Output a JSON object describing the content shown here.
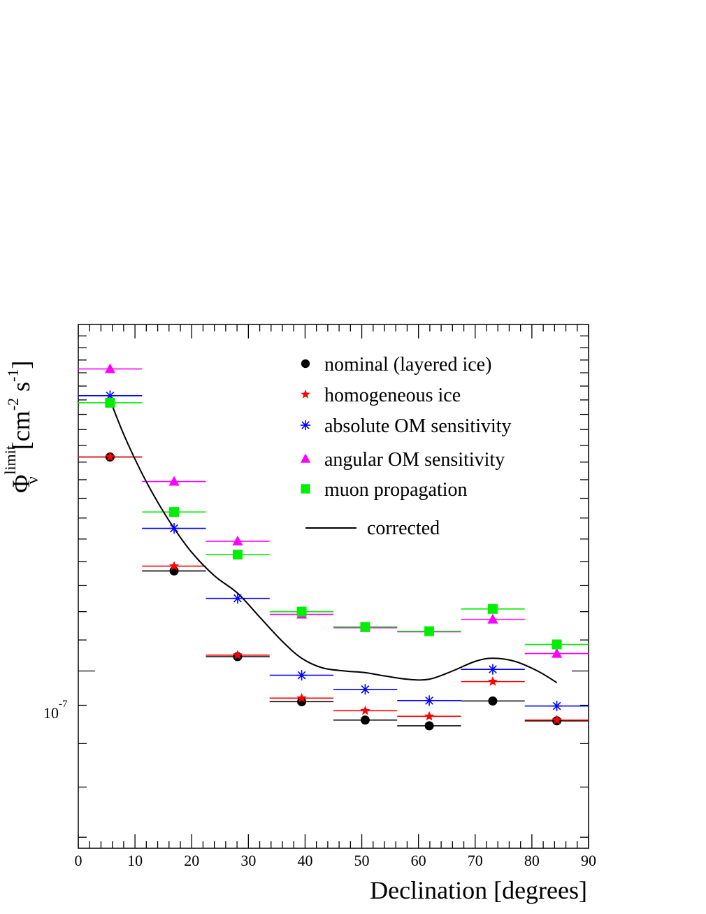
{
  "chart_data": {
    "type": "scatter",
    "xlabel": "Declination [degrees]",
    "ylabel": {
      "symbol": "Φ",
      "superscript": "limit",
      "subscript": "ν",
      "units": "[cm",
      "units_exp1": "-2",
      "units_mid": " s",
      "units_exp2": "-1",
      "units_end": "]"
    },
    "xlim": [
      0,
      90
    ],
    "ylim": [
      5.8e-08,
      2.9e-07
    ],
    "y_scale": "log",
    "x_ticks": [
      "0",
      "10",
      "20",
      "30",
      "40",
      "50",
      "60",
      "70",
      "80",
      "90"
    ],
    "y_tick_label": {
      "base": "10",
      "exp": "-7"
    },
    "bin_edges": [
      0,
      11.25,
      22.5,
      33.75,
      45,
      56.25,
      67.5,
      78.75,
      90
    ],
    "bin_centers": [
      5.6,
      16.9,
      28.1,
      39.4,
      50.6,
      61.9,
      73.1,
      84.4
    ],
    "series": [
      {
        "name": "nominal (layered ice)",
        "marker": "circle",
        "color": "#000000",
        "values": [
          1.93e-07,
          1.36e-07,
          1.045e-07,
          9.1e-08,
          8.6e-08,
          8.45e-08,
          9.12e-08,
          8.58e-08
        ]
      },
      {
        "name": "homogeneous ice",
        "marker": "star",
        "color": "#ff0000",
        "values": [
          1.93e-07,
          1.38e-07,
          1.05e-07,
          9.2e-08,
          8.85e-08,
          8.7e-08,
          9.68e-08,
          8.6e-08
        ]
      },
      {
        "name": "absolute OM sensitivity",
        "marker": "asterisk",
        "color": "#0000ff",
        "values": [
          2.33e-07,
          1.55e-07,
          1.25e-07,
          9.87e-08,
          9.45e-08,
          9.13e-08,
          1.005e-07,
          8.98e-08
        ]
      },
      {
        "name": "angular OM sensitivity",
        "marker": "triangle",
        "color": "#ff00ff",
        "values": [
          2.53e-07,
          1.79e-07,
          1.49e-07,
          1.19e-07,
          1.142e-07,
          1.128e-07,
          1.172e-07,
          1.055e-07
        ]
      },
      {
        "name": "muon propagation",
        "marker": "square",
        "color": "#00ee00",
        "values": [
          2.28e-07,
          1.63e-07,
          1.43e-07,
          1.2e-07,
          1.145e-07,
          1.13e-07,
          1.21e-07,
          1.085e-07
        ]
      }
    ],
    "curve": {
      "name": "corrected",
      "color": "#000000",
      "x": [
        5.6,
        8,
        11,
        14,
        16.9,
        20,
        24,
        28.1,
        32,
        36,
        39.4,
        43,
        47,
        50.6,
        54,
        58,
        61.9,
        66,
        70,
        73.1,
        77,
        81,
        84.4
      ],
      "y": [
        2.3e-07,
        2.07e-07,
        1.85e-07,
        1.68e-07,
        1.55e-07,
        1.44e-07,
        1.34e-07,
        1.27e-07,
        1.18e-07,
        1.095e-07,
        1.04e-07,
        1.01e-07,
        1e-07,
        9.95e-08,
        9.85e-08,
        9.75e-08,
        9.75e-08,
        1e-07,
        1.03e-07,
        1.04e-07,
        1.03e-07,
        1e-07,
        9.65e-08
      ]
    },
    "legend_position": "top-right",
    "grid": false
  }
}
